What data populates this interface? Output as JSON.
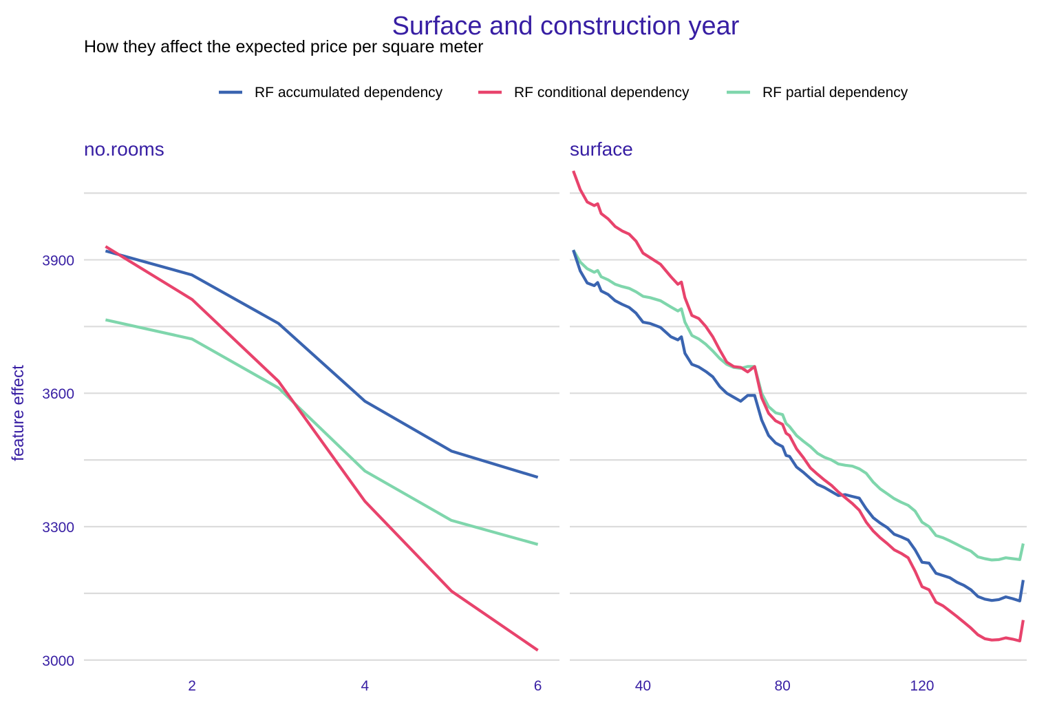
{
  "chart_data": {
    "type": "line",
    "title": "Surface and construction year",
    "subtitle": "How they affect the expected price per square meter",
    "ylabel": "feature effect",
    "xlabel": "",
    "ylim": [
      2995,
      4105
    ],
    "y_ticks": [
      3000,
      3300,
      3600,
      3900
    ],
    "y_ticks_text": [
      "3000",
      "3300",
      "3600",
      "3900"
    ],
    "legend_position": "top",
    "colors": {
      "accumulated": "#3a64b0",
      "conditional": "#e8436c",
      "partial": "#7fd6ac",
      "text_accent": "#371ea3"
    },
    "legend": [
      {
        "key": "accumulated",
        "label": "RF accumulated dependency"
      },
      {
        "key": "conditional",
        "label": "RF conditional dependency"
      },
      {
        "key": "partial",
        "label": "RF partial dependency"
      }
    ],
    "panels": [
      {
        "name": "no.rooms",
        "xlim": [
          0.75,
          6.25
        ],
        "x_ticks": [
          2,
          4,
          6
        ],
        "x_ticks_text": [
          "2",
          "4",
          "6"
        ],
        "series": [
          {
            "key": "accumulated",
            "x": [
              1,
              2,
              3,
              4,
              5,
              6
            ],
            "y": [
              3920,
              3866,
              3757,
              3582,
              3470,
              3411
            ]
          },
          {
            "key": "conditional",
            "x": [
              1,
              2,
              3,
              4,
              5,
              6
            ],
            "y": [
              3930,
              3811,
              3627,
              3357,
              3155,
              3022
            ]
          },
          {
            "key": "partial",
            "x": [
              1,
              2,
              3,
              4,
              5,
              6
            ],
            "y": [
              3765,
              3722,
              3612,
              3425,
              3314,
              3260
            ]
          }
        ]
      },
      {
        "name": "surface",
        "xlim": [
          19,
          150
        ],
        "x_ticks": [
          40,
          80,
          120
        ],
        "x_ticks_text": [
          "40",
          "80",
          "120"
        ],
        "series": [
          {
            "key": "accumulated",
            "x": [
              20,
              22,
              24,
              26,
              27,
              28,
              30,
              32,
              34,
              36,
              38,
              40,
              42,
              45,
              48,
              50,
              51,
              52,
              54,
              56,
              58,
              60,
              62,
              64,
              66,
              68,
              70,
              72,
              74,
              76,
              78,
              80,
              81,
              82,
              84,
              86,
              88,
              90,
              92,
              94,
              96,
              98,
              100,
              102,
              104,
              106,
              108,
              110,
              112,
              114,
              116,
              118,
              120,
              122,
              124,
              126,
              128,
              130,
              132,
              134,
              136,
              138,
              140,
              142,
              144,
              146,
              148,
              149
            ],
            "y": [
              3922,
              3875,
              3848,
              3842,
              3849,
              3830,
              3822,
              3808,
              3800,
              3793,
              3780,
              3760,
              3757,
              3748,
              3727,
              3720,
              3727,
              3690,
              3665,
              3659,
              3649,
              3637,
              3615,
              3600,
              3591,
              3582,
              3595,
              3595,
              3540,
              3505,
              3488,
              3480,
              3460,
              3458,
              3434,
              3422,
              3408,
              3395,
              3388,
              3379,
              3370,
              3372,
              3368,
              3364,
              3340,
              3320,
              3308,
              3298,
              3283,
              3277,
              3270,
              3248,
              3220,
              3218,
              3195,
              3190,
              3185,
              3175,
              3168,
              3158,
              3143,
              3137,
              3134,
              3136,
              3142,
              3138,
              3133,
              3180
            ]
          },
          {
            "key": "conditional",
            "x": [
              20,
              22,
              24,
              26,
              27,
              28,
              30,
              32,
              34,
              36,
              38,
              40,
              42,
              45,
              48,
              50,
              51,
              52,
              54,
              56,
              58,
              60,
              62,
              64,
              66,
              68,
              70,
              72,
              74,
              76,
              78,
              80,
              81,
              82,
              84,
              86,
              88,
              90,
              92,
              94,
              96,
              98,
              100,
              102,
              104,
              106,
              108,
              110,
              112,
              114,
              116,
              118,
              120,
              122,
              124,
              126,
              128,
              130,
              132,
              134,
              136,
              138,
              140,
              142,
              144,
              146,
              148,
              149
            ],
            "y": [
              4100,
              4058,
              4030,
              4022,
              4026,
              4004,
              3992,
              3975,
              3965,
              3958,
              3942,
              3915,
              3905,
              3890,
              3862,
              3845,
              3850,
              3815,
              3775,
              3768,
              3750,
              3727,
              3697,
              3670,
              3660,
              3658,
              3648,
              3660,
              3590,
              3555,
              3538,
              3530,
              3510,
              3505,
              3475,
              3455,
              3432,
              3418,
              3405,
              3393,
              3378,
              3365,
              3352,
              3337,
              3310,
              3290,
              3275,
              3262,
              3248,
              3240,
              3230,
              3200,
              3165,
              3158,
              3130,
              3122,
              3110,
              3098,
              3085,
              3072,
              3057,
              3048,
              3045,
              3046,
              3050,
              3047,
              3043,
              3090
            ]
          },
          {
            "key": "partial",
            "x": [
              20,
              22,
              24,
              26,
              27,
              28,
              30,
              32,
              34,
              36,
              38,
              40,
              42,
              45,
              48,
              50,
              51,
              52,
              54,
              56,
              58,
              60,
              62,
              64,
              66,
              68,
              70,
              72,
              74,
              76,
              78,
              80,
              81,
              82,
              84,
              86,
              88,
              90,
              92,
              94,
              96,
              98,
              100,
              102,
              104,
              106,
              108,
              110,
              112,
              114,
              116,
              118,
              120,
              122,
              124,
              126,
              128,
              130,
              132,
              134,
              136,
              138,
              140,
              142,
              144,
              146,
              148,
              149
            ],
            "y": [
              3922,
              3895,
              3880,
              3872,
              3876,
              3862,
              3855,
              3845,
              3840,
              3836,
              3828,
              3818,
              3815,
              3808,
              3794,
              3785,
              3790,
              3760,
              3730,
              3722,
              3710,
              3695,
              3678,
              3665,
              3658,
              3656,
              3660,
              3660,
              3600,
              3570,
              3556,
              3552,
              3532,
              3525,
              3505,
              3492,
              3480,
              3465,
              3456,
              3450,
              3441,
              3438,
              3436,
              3430,
              3420,
              3400,
              3385,
              3374,
              3363,
              3355,
              3348,
              3335,
              3310,
              3300,
              3280,
              3275,
              3268,
              3260,
              3252,
              3245,
              3232,
              3228,
              3225,
              3226,
              3230,
              3228,
              3226,
              3262
            ]
          }
        ]
      }
    ]
  }
}
